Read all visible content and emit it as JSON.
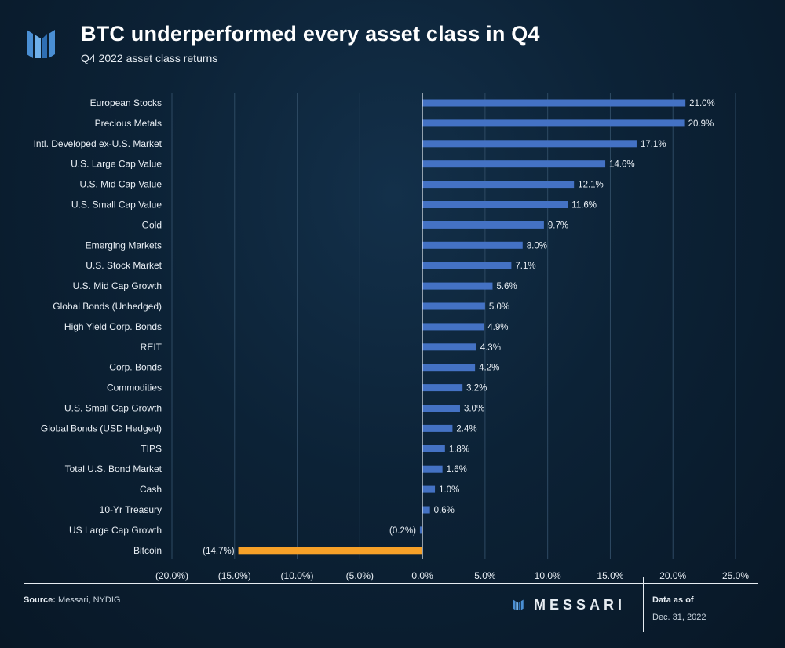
{
  "header": {
    "title": "BTC underperformed every asset class in Q4",
    "subtitle": "Q4 2022 asset class returns"
  },
  "footer": {
    "source_label": "Source:",
    "source_text": "Messari, NYDIG",
    "brand": "MESSARI",
    "data_as_of_label": "Data as of",
    "data_as_of_date": "Dec. 31, 2022"
  },
  "colors": {
    "positive_bar": "#4472c4",
    "highlight_bar": "#f7a128",
    "grid": "#2e4a63",
    "axis": "#e6ecf2"
  },
  "chart_data": {
    "type": "bar",
    "orientation": "horizontal",
    "title": "BTC underperformed every asset class in Q4",
    "subtitle": "Q4 2022 asset class returns",
    "categories": [
      "European Stocks",
      "Precious Metals",
      "Intl. Developed ex-U.S. Market",
      "U.S. Large Cap Value",
      "U.S. Mid Cap Value",
      "U.S. Small Cap Value",
      "Gold",
      "Emerging Markets",
      "U.S. Stock Market",
      "U.S. Mid Cap Growth",
      "Global Bonds (Unhedged)",
      "High Yield Corp. Bonds",
      "REIT",
      "Corp. Bonds",
      "Commodities",
      "U.S. Small Cap Growth",
      "Global Bonds (USD Hedged)",
      "TIPS",
      "Total U.S. Bond Market",
      "Cash",
      "10-Yr Treasury",
      "US Large Cap Growth",
      "Bitcoin"
    ],
    "values": [
      21.0,
      20.9,
      17.1,
      14.6,
      12.1,
      11.6,
      9.7,
      8.0,
      7.1,
      5.6,
      5.0,
      4.9,
      4.3,
      4.2,
      3.2,
      3.0,
      2.4,
      1.8,
      1.6,
      1.0,
      0.6,
      -0.2,
      -14.7
    ],
    "value_labels": [
      "21.0%",
      "20.9%",
      "17.1%",
      "14.6%",
      "12.1%",
      "11.6%",
      "9.7%",
      "8.0%",
      "7.1%",
      "5.6%",
      "5.0%",
      "4.9%",
      "4.3%",
      "4.2%",
      "3.2%",
      "3.0%",
      "2.4%",
      "1.8%",
      "1.6%",
      "1.0%",
      "0.6%",
      "(0.2%)",
      "(14.7%)"
    ],
    "highlight": [
      "Bitcoin"
    ],
    "xlim": [
      -20,
      25
    ],
    "xticks": [
      -20,
      -15,
      -10,
      -5,
      0,
      5,
      10,
      15,
      20,
      25
    ],
    "xtick_labels": [
      "(20.0%)",
      "(15.0%)",
      "(10.0%)",
      "(5.0%)",
      "0.0%",
      "5.0%",
      "10.0%",
      "15.0%",
      "20.0%",
      "25.0%"
    ],
    "grid": true,
    "legend": "none"
  }
}
